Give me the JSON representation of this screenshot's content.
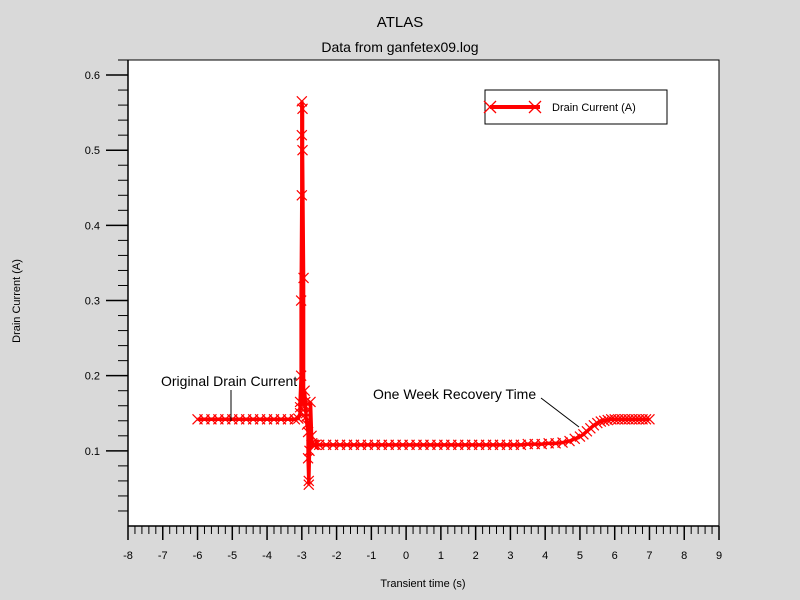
{
  "chart_data": {
    "type": "line",
    "title": "ATLAS",
    "subtitle": "Data from ganfetex09.log",
    "xlabel": "Transient time (s)",
    "ylabel": "Drain Current (A)",
    "xlim": [
      -8,
      9
    ],
    "ylim": [
      0,
      0.62
    ],
    "xticks": [
      "-8",
      "-7",
      "-6",
      "-5",
      "-4",
      "-3",
      "-2",
      "-1",
      "0",
      "1",
      "2",
      "3",
      "4",
      "5",
      "6",
      "7",
      "8",
      "9"
    ],
    "yticks": [
      "0.1",
      "0.2",
      "0.3",
      "0.4",
      "0.5",
      "0.6"
    ],
    "grid": false,
    "legend_position": "top-right",
    "series": [
      {
        "name": "Drain Current (A)",
        "color": "#ff0000",
        "marker": "x",
        "x": [
          -6.0,
          -5.8,
          -5.6,
          -5.4,
          -5.2,
          -5.0,
          -4.8,
          -4.6,
          -4.4,
          -4.2,
          -4.0,
          -3.8,
          -3.6,
          -3.4,
          -3.2,
          -3.1,
          -3.05,
          -3.05,
          -3.05,
          -3.02,
          -3.02,
          -3.0,
          -3.0,
          -3.0,
          -2.98,
          -2.98,
          -2.95,
          -2.95,
          -2.92,
          -2.9,
          -2.9,
          -2.88,
          -2.88,
          -2.85,
          -2.82,
          -2.82,
          -2.8,
          -2.8,
          -2.78,
          -2.75,
          -2.72,
          -2.7,
          -2.68,
          -2.65,
          -2.6,
          -2.5,
          -2.3,
          -2.1,
          -1.9,
          -1.7,
          -1.5,
          -1.3,
          -1.1,
          -0.9,
          -0.7,
          -0.5,
          -0.3,
          -0.1,
          0.1,
          0.3,
          0.5,
          0.7,
          0.9,
          1.1,
          1.3,
          1.5,
          1.7,
          1.9,
          2.1,
          2.3,
          2.5,
          2.7,
          2.9,
          3.1,
          3.3,
          3.5,
          3.7,
          3.9,
          4.1,
          4.3,
          4.5,
          4.7,
          4.85,
          5.0,
          5.1,
          5.2,
          5.3,
          5.4,
          5.5,
          5.6,
          5.7,
          5.8,
          5.9,
          6.0,
          6.1,
          6.2,
          6.3,
          6.4,
          6.5,
          6.6,
          6.7,
          6.8,
          6.9,
          7.0
        ],
        "y": [
          0.142,
          0.142,
          0.142,
          0.142,
          0.142,
          0.142,
          0.142,
          0.142,
          0.142,
          0.142,
          0.142,
          0.142,
          0.142,
          0.142,
          0.142,
          0.143,
          0.15,
          0.158,
          0.165,
          0.2,
          0.3,
          0.44,
          0.52,
          0.565,
          0.555,
          0.5,
          0.33,
          0.16,
          0.18,
          0.165,
          0.16,
          0.15,
          0.145,
          0.135,
          0.125,
          0.09,
          0.06,
          0.055,
          0.1,
          0.165,
          0.12,
          0.11,
          0.108,
          0.108,
          0.108,
          0.108,
          0.108,
          0.108,
          0.108,
          0.108,
          0.108,
          0.108,
          0.108,
          0.108,
          0.108,
          0.108,
          0.108,
          0.108,
          0.108,
          0.108,
          0.108,
          0.108,
          0.108,
          0.108,
          0.108,
          0.108,
          0.108,
          0.108,
          0.108,
          0.108,
          0.108,
          0.108,
          0.108,
          0.108,
          0.108,
          0.109,
          0.109,
          0.109,
          0.11,
          0.11,
          0.111,
          0.113,
          0.116,
          0.119,
          0.122,
          0.126,
          0.13,
          0.134,
          0.137,
          0.139,
          0.14,
          0.141,
          0.142,
          0.142,
          0.142,
          0.142,
          0.142,
          0.142,
          0.142,
          0.142,
          0.142,
          0.142,
          0.142,
          0.142
        ]
      }
    ],
    "annotations": [
      {
        "text": "Original Drain Current",
        "point": [
          -5.0,
          0.142
        ]
      },
      {
        "text": "One Week Recovery Time",
        "point": [
          4.95,
          0.124
        ]
      }
    ]
  }
}
